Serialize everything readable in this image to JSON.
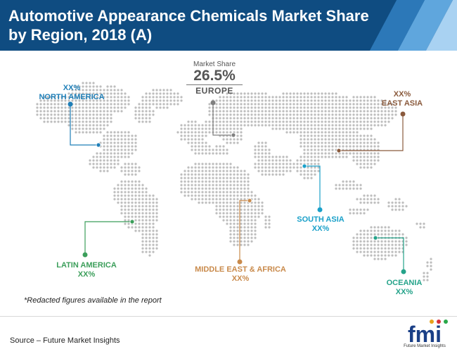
{
  "title": "Automotive Appearance Chemicals Market Share by Region, 2018 (A)",
  "europe": {
    "caption": "Market Share",
    "value": "26.5%",
    "name": "EUROPE",
    "color": "#808080"
  },
  "regions": [
    {
      "key": "north-america",
      "name": "NORTH AMERICA",
      "value": "XX%",
      "color": "#1f7fb8"
    },
    {
      "key": "latin-america",
      "name": "LATIN AMERICA",
      "value": "XX%",
      "color": "#3b9e5a"
    },
    {
      "key": "middle-east-africa",
      "name": "MIDDLE EAST & AFRICA",
      "value": "XX%",
      "color": "#c98a4b"
    },
    {
      "key": "south-asia",
      "name": "SOUTH ASIA",
      "value": "XX%",
      "color": "#1aa0c9"
    },
    {
      "key": "east-asia",
      "name": "EAST ASIA",
      "value": "XX%",
      "color": "#8a5a3c"
    },
    {
      "key": "oceania",
      "name": "OCEANIA",
      "value": "XX%",
      "color": "#25a38a"
    }
  ],
  "note": "*Redacted figures available in the report",
  "source": "Source – Future Market Insights",
  "logo": {
    "text": "fmi",
    "tagline": "Future Market Insights",
    "color": "#1a3f86"
  }
}
